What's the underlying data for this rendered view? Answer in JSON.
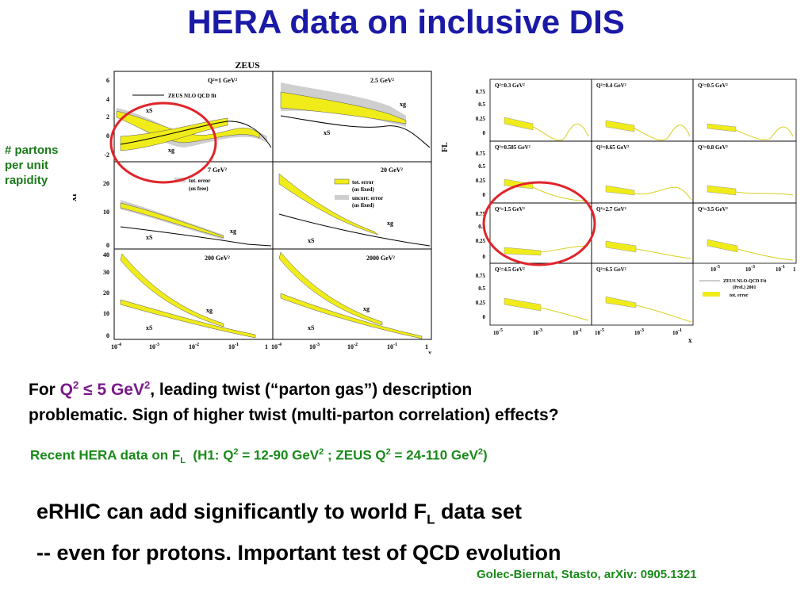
{
  "slide": {
    "title": "HERA data on inclusive DIS",
    "annotation": [
      "# partons",
      "per unit",
      "rapidity"
    ],
    "para1": {
      "for": "For ",
      "q": "Q",
      "q_exp": "2",
      "le": " ≤ 5 GeV",
      "le_exp": "2",
      "rest1": ", leading twist (“parton gas”) description",
      "line2": "problematic. Sign of higher twist (multi-parton correlation) effects?"
    },
    "para2": {
      "a": "Recent HERA data on F",
      "a_sub": "L",
      "b": "  (H1: Q",
      "b_exp": "2",
      "c": " = 12-90 GeV",
      "c_exp": "2",
      "d": " ; ZEUS Q",
      "d_exp": "2",
      "e": " = 24-110 GeV",
      "e_exp": "2",
      "f": ")"
    },
    "para3": {
      "l1a": "eRHIC can add significantly to world F",
      "l1_sub": "L",
      "l1b": " data set",
      "l2": "-- even for protons. Important test of QCD evolution"
    },
    "citation": "Golec-Biernat, Stasto, arXiv: 0905.1321"
  },
  "left_figure": {
    "header": "ZEUS",
    "ylabel": "xf",
    "xlabel": "x",
    "x_ticks": [
      "10",
      "10",
      "10",
      "10",
      "1"
    ],
    "x_tick_exps": [
      "-4",
      "-3",
      "-2",
      "-1",
      ""
    ],
    "panels": [
      {
        "q2": "Q²=1 GeV²",
        "labels": [
          "xS",
          "xg"
        ],
        "yticks": [
          "6",
          "4",
          "2",
          "0",
          "-2"
        ],
        "legend": "ZEUS NLO QCD fit"
      },
      {
        "q2": "2.5 GeV²",
        "labels": [
          "xg",
          "xS"
        ]
      },
      {
        "q2": "7 GeV²",
        "labels": [
          "xS",
          "xg"
        ],
        "yticks": [
          "20",
          "10",
          "0"
        ],
        "legend_items": [
          "tot. error",
          "(αs free)"
        ]
      },
      {
        "q2": "20 GeV²",
        "labels": [
          "xS",
          "xg"
        ],
        "legend_items": [
          "tot. error",
          "(αs fixed)",
          "uncorr. error",
          "(αs fixed)"
        ]
      },
      {
        "q2": "200 GeV²",
        "labels": [
          "xg",
          "xS"
        ],
        "yticks": [
          "40",
          "30",
          "20",
          "10",
          "0"
        ]
      },
      {
        "q2": "2000 GeV²",
        "labels": [
          "xg",
          "xS"
        ]
      }
    ]
  },
  "right_figure": {
    "ylabel": "FL",
    "xlabel": "x",
    "yticks": [
      "0.75",
      "0.5",
      "0.25",
      "0"
    ],
    "x_ticks": [
      "10",
      "10",
      "10",
      "1"
    ],
    "x_tick_exps": [
      "-5",
      "-3",
      "-1",
      ""
    ],
    "panels": [
      "Q²=0.3 GeV²",
      "Q²=0.4 GeV²",
      "Q²=0.5 GeV²",
      "Q²=0.585 GeV²",
      "Q²=0.65 GeV²",
      "Q²=0.8 GeV²",
      "Q²=1.5 GeV²",
      "Q²=2.7 GeV²",
      "Q²=3.5 GeV²",
      "Q²=4.5 GeV²",
      "Q²=6.5 GeV²"
    ],
    "legend": [
      "ZEUS NLO-QCD Fit",
      "(Prel.) 2001",
      "tot. error"
    ]
  },
  "colors": {
    "title": "#1a1aa6",
    "annotation": "#1a7a1a",
    "highlight": "#e0242a",
    "band": "#f0ec1a"
  }
}
